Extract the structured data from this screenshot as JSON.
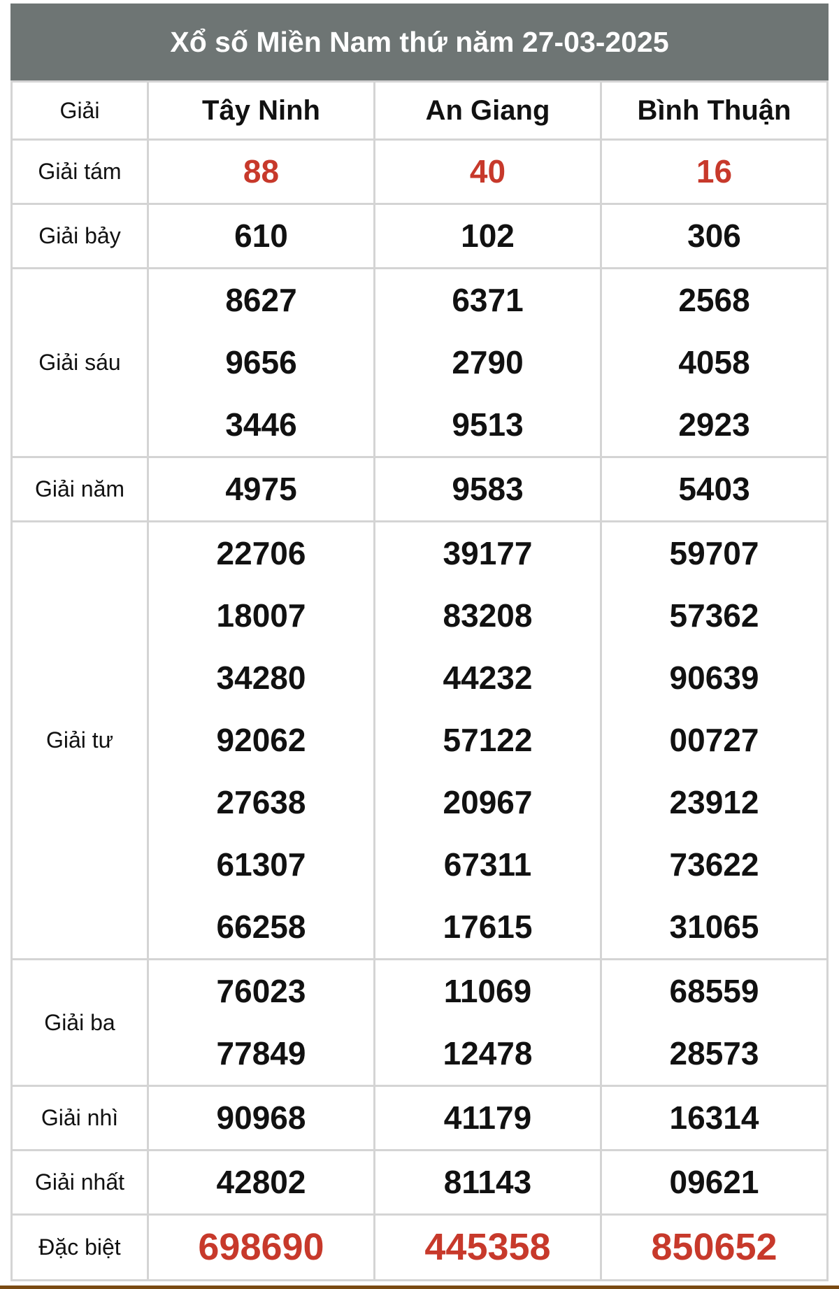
{
  "title": "Xổ số Miền Nam thứ năm 27-03-2025",
  "header": {
    "label": "Giải",
    "provinces": [
      "Tây Ninh",
      "An Giang",
      "Bình Thuận"
    ]
  },
  "colors": {
    "title_bg": "#6e7574",
    "highlight": "#c7392b",
    "border": "#d4d4d4"
  },
  "rows": [
    {
      "label": "Giải tám",
      "highlight": true,
      "values": [
        [
          "88"
        ],
        [
          "40"
        ],
        [
          "16"
        ]
      ]
    },
    {
      "label": "Giải bảy",
      "values": [
        [
          "610"
        ],
        [
          "102"
        ],
        [
          "306"
        ]
      ]
    },
    {
      "label": "Giải sáu",
      "values": [
        [
          "8627",
          "9656",
          "3446"
        ],
        [
          "6371",
          "2790",
          "9513"
        ],
        [
          "2568",
          "4058",
          "2923"
        ]
      ]
    },
    {
      "label": "Giải năm",
      "values": [
        [
          "4975"
        ],
        [
          "9583"
        ],
        [
          "5403"
        ]
      ]
    },
    {
      "label": "Giải tư",
      "values": [
        [
          "22706",
          "18007",
          "34280",
          "92062",
          "27638",
          "61307",
          "66258"
        ],
        [
          "39177",
          "83208",
          "44232",
          "57122",
          "20967",
          "67311",
          "17615"
        ],
        [
          "59707",
          "57362",
          "90639",
          "00727",
          "23912",
          "73622",
          "31065"
        ]
      ]
    },
    {
      "label": "Giải ba",
      "values": [
        [
          "76023",
          "77849"
        ],
        [
          "11069",
          "12478"
        ],
        [
          "68559",
          "28573"
        ]
      ]
    },
    {
      "label": "Giải nhì",
      "values": [
        [
          "90968"
        ],
        [
          "41179"
        ],
        [
          "16314"
        ]
      ]
    },
    {
      "label": "Giải nhất",
      "values": [
        [
          "42802"
        ],
        [
          "81143"
        ],
        [
          "09621"
        ]
      ]
    },
    {
      "label": "Đặc biệt",
      "highlight": true,
      "big": true,
      "values": [
        [
          "698690"
        ],
        [
          "445358"
        ],
        [
          "850652"
        ]
      ]
    }
  ]
}
